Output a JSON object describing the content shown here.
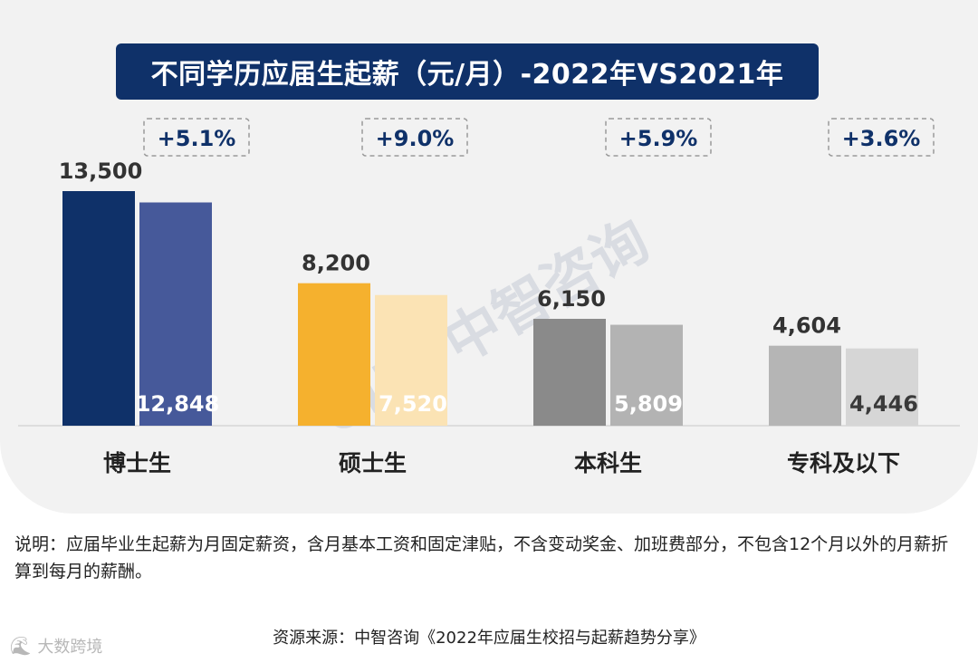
{
  "chart_data": {
    "type": "bar",
    "title": "不同学历应届生起薪（元/月）-2022年VS2021年",
    "categories": [
      "博士生",
      "硕士生",
      "本科生",
      "专科及以下"
    ],
    "series": [
      {
        "name": "2022年",
        "values": [
          13500,
          8200,
          6150,
          4604
        ],
        "labels": [
          "13,500",
          "8,200",
          "6,150",
          "4,604"
        ],
        "colors": [
          "#0f3169",
          "#f5b12e",
          "#8a8a8a",
          "#b5b5b5"
        ]
      },
      {
        "name": "2021年",
        "values": [
          12848,
          7520,
          5809,
          4446
        ],
        "labels": [
          "12,848",
          "7,520",
          "5,809",
          "4,446"
        ],
        "colors": [
          "#46599a",
          "#fbe3b4",
          "#b3b3b3",
          "#d6d6d6"
        ]
      }
    ],
    "growth_labels": [
      "+5.1%",
      "+9.0%",
      "+5.9%",
      "+3.6%"
    ],
    "ylim": [
      0,
      13500
    ],
    "grid": false,
    "legend": "none"
  },
  "watermark": "CIIC 中智咨询",
  "note": "说明：应届毕业生起薪为月固定薪资，含月基本工资和固定津贴，不含变动奖金、加班费部分，不包含12个月以外的月薪折算到每月的薪酬。",
  "source": "资源来源：中智咨询《2022年应届生校招与起薪趋势分享》",
  "corner_brand": "大数跨境",
  "colors": {
    "title_bg": "#0f3169",
    "growth_text": "#0f3169",
    "panel_bg": "#f2f2f2",
    "watermark": "#c5cad6"
  }
}
